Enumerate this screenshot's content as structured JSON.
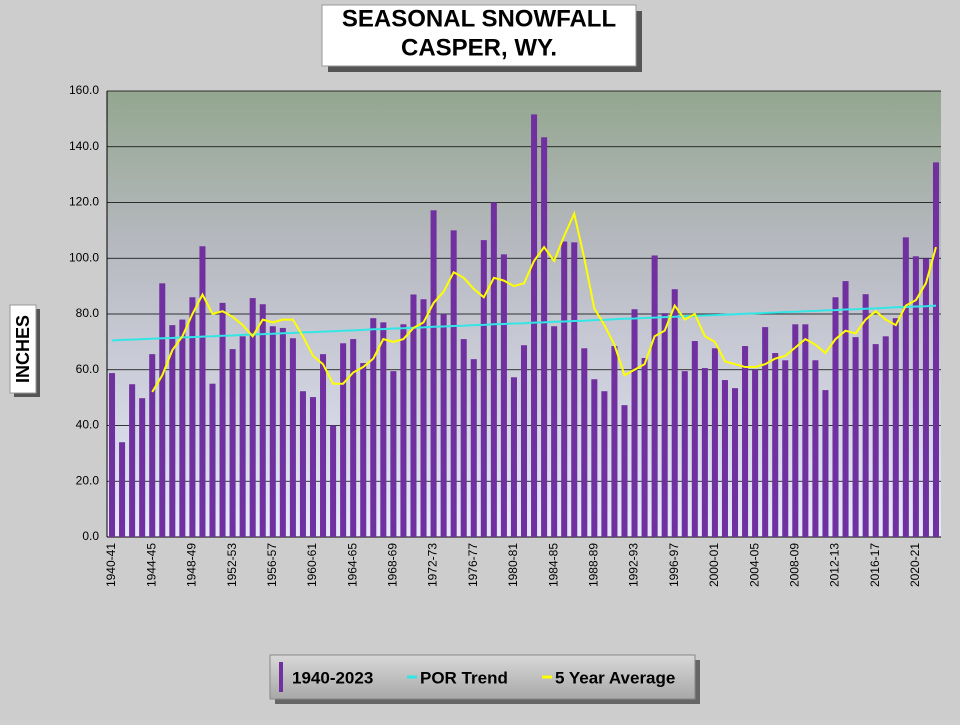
{
  "chart_data": {
    "type": "bar",
    "title": [
      "SEASONAL SNOWFALL",
      "CASPER, WY."
    ],
    "y_label": "INCHES",
    "categories": [
      "1940-41",
      null,
      null,
      null,
      "1944-45",
      null,
      null,
      null,
      "1948-49",
      null,
      null,
      null,
      "1952-53",
      null,
      null,
      null,
      "1956-57",
      null,
      null,
      null,
      "1960-61",
      null,
      null,
      null,
      "1964-65",
      null,
      null,
      null,
      "1968-69",
      null,
      null,
      null,
      "1972-73",
      null,
      null,
      null,
      "1976-77",
      null,
      null,
      null,
      "1980-81",
      null,
      null,
      null,
      "1984-85",
      null,
      null,
      null,
      "1988-89",
      null,
      null,
      null,
      "1992-93",
      null,
      null,
      null,
      "1996-97",
      null,
      null,
      null,
      "2000-01",
      null,
      null,
      null,
      "2004-05",
      null,
      null,
      null,
      "2008-09",
      null,
      null,
      null,
      "2012-13",
      null,
      null,
      null,
      "2016-17",
      null,
      null,
      null,
      "2020-21",
      null,
      null
    ],
    "series": [
      {
        "name": "1940-2023",
        "type": "bar",
        "color": "#7030a0",
        "values": [
          58.8,
          34,
          54.8,
          49.8,
          65.6,
          91,
          76,
          78,
          86,
          104.3,
          55,
          84,
          67.4,
          72,
          85.7,
          83.5,
          75.6,
          75,
          71.3,
          52.3,
          50.2,
          65.6,
          40,
          69.5,
          71,
          62.4,
          78.5,
          77,
          59.5,
          76.3,
          87,
          85.3,
          117.2,
          80,
          110,
          71,
          63.8,
          106.5,
          120,
          101.4,
          57.3,
          68.8,
          151.6,
          143.4,
          75.6,
          106,
          105.7,
          67.7,
          56.6,
          52.3,
          68.5,
          47.3,
          81.7,
          64.2,
          101,
          80.3,
          88.9,
          59.5,
          70.3,
          60.6,
          67.7,
          56.3,
          53.4,
          68.5,
          59.9,
          75.3,
          66,
          63.4,
          76.3,
          76.3,
          63.4,
          52.7,
          86,
          91.8,
          71.7,
          87.1,
          69.2,
          72,
          78.5,
          107.5,
          100.7,
          100,
          134.4
        ]
      },
      {
        "name": "POR Trend",
        "type": "line",
        "color": "#33e6e6",
        "values": [
          70.5,
          70.7,
          70.8,
          71.0,
          71.1,
          71.3,
          71.4,
          71.6,
          71.7,
          71.9,
          72.0,
          72.2,
          72.3,
          72.5,
          72.6,
          72.8,
          72.9,
          73.1,
          73.2,
          73.4,
          73.5,
          73.7,
          73.8,
          74.0,
          74.1,
          74.3,
          74.5,
          74.6,
          74.8,
          74.9,
          75.1,
          75.2,
          75.4,
          75.5,
          75.7,
          75.8,
          76.0,
          76.1,
          76.3,
          76.4,
          76.6,
          76.7,
          76.9,
          77.0,
          77.2,
          77.3,
          77.5,
          77.6,
          77.8,
          77.9,
          78.1,
          78.3,
          78.4,
          78.6,
          78.7,
          78.9,
          79.0,
          79.2,
          79.3,
          79.5,
          79.6,
          79.8,
          79.9,
          80.1,
          80.2,
          80.4,
          80.5,
          80.7,
          80.8,
          81.0,
          81.1,
          81.3,
          81.4,
          81.6,
          81.7,
          81.9,
          82.0,
          82.2,
          82.4,
          82.5,
          82.7,
          82.8,
          83.0
        ]
      },
      {
        "name": "5 Year Average",
        "type": "line",
        "color": "#ffff00",
        "values": [
          null,
          null,
          null,
          null,
          52,
          58,
          67,
          72,
          80,
          87,
          80,
          81,
          79,
          76,
          72,
          78,
          77,
          78,
          78,
          72,
          65,
          62,
          55,
          55,
          59,
          61,
          64,
          71,
          70,
          71,
          75,
          77,
          84,
          88,
          95,
          93,
          89,
          86,
          93,
          92,
          90,
          91,
          99,
          104,
          99,
          108,
          116,
          100,
          82,
          76,
          69,
          58,
          60,
          62,
          72,
          74,
          83,
          78,
          80,
          72,
          70,
          63,
          62,
          61,
          61,
          62,
          64,
          65,
          68,
          71,
          69,
          66,
          71,
          74,
          73,
          78,
          81,
          78,
          76,
          83,
          85,
          91,
          104
        ]
      }
    ],
    "ylim": [
      0,
      160
    ],
    "yticks": [
      {
        "value": 0,
        "label": "0.0"
      },
      {
        "value": 20,
        "label": "20.0"
      },
      {
        "value": 40,
        "label": "40.0"
      },
      {
        "value": 60,
        "label": "60.0"
      },
      {
        "value": 80,
        "label": "80.0"
      },
      {
        "value": 100,
        "label": "100.0"
      },
      {
        "value": 120,
        "label": "120.0"
      },
      {
        "value": 140,
        "label": "140.0"
      },
      {
        "value": 160,
        "label": "160.0"
      }
    ],
    "grid": true
  }
}
